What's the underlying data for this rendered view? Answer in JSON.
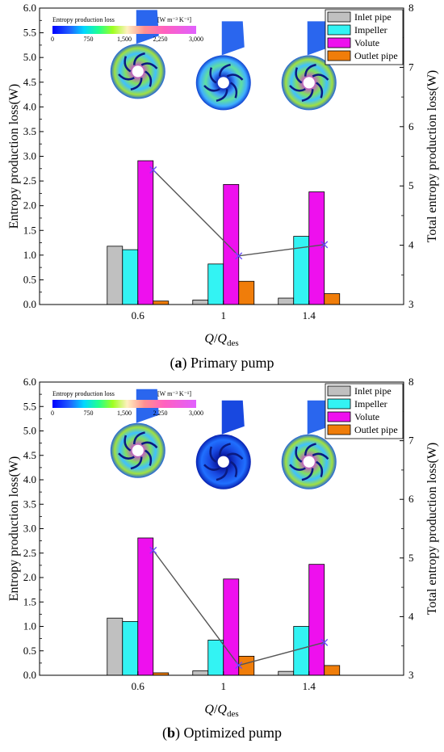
{
  "chart_data": [
    {
      "type": "bar",
      "caption_label": "a",
      "caption_text": "Primary pump",
      "xlabel_main": "Q",
      "xlabel_sep": "/",
      "xlabel_q": "Q",
      "xlabel_sub": "des",
      "ylabel": "Entropy production loss(W)",
      "y2label": "Total entropy production loss(W)",
      "categories": [
        "0.6",
        "1",
        "1.4"
      ],
      "ylim": [
        0,
        6.0
      ],
      "yticks": [
        "0.0",
        "0.5",
        "1.0",
        "1.5",
        "2.0",
        "2.5",
        "3.0",
        "3.5",
        "4.0",
        "4.5",
        "5.0",
        "5.5",
        "6.0"
      ],
      "y2lim": [
        3,
        8
      ],
      "y2ticks": [
        "3",
        "4",
        "5",
        "6",
        "7",
        "8"
      ],
      "series": [
        {
          "name": "Inlet pipe",
          "color": "#c0c0c0",
          "values": [
            1.18,
            0.09,
            0.13
          ]
        },
        {
          "name": "Impeller",
          "color": "#33f3f3",
          "values": [
            1.11,
            0.82,
            1.38
          ]
        },
        {
          "name": "Volute",
          "color": "#ee10ee",
          "values": [
            2.91,
            2.43,
            2.28
          ]
        },
        {
          "name": "Outlet pipe",
          "color": "#f07d0a",
          "values": [
            0.07,
            0.47,
            0.22
          ]
        }
      ],
      "total_line": {
        "values": [
          5.27,
          3.82,
          4.01
        ],
        "color": "#555555"
      },
      "colorbar": {
        "title": "Entropy production loss",
        "unit": "[W m⁻³ K⁻¹]",
        "ticks": [
          "0",
          "750",
          "1,500",
          "2,250",
          "3,000"
        ]
      },
      "legend_position": "top-right",
      "grid": false
    },
    {
      "type": "bar",
      "caption_label": "b",
      "caption_text": "Optimized pump",
      "xlabel_main": "Q",
      "xlabel_sep": "/",
      "xlabel_q": "Q",
      "xlabel_sub": "des",
      "ylabel": "Entropy production loss(W)",
      "y2label": "Total entropy production loss(W)",
      "categories": [
        "0.6",
        "1",
        "1.4"
      ],
      "ylim": [
        0,
        6.0
      ],
      "yticks": [
        "0.0",
        "0.5",
        "1.0",
        "1.5",
        "2.0",
        "2.5",
        "3.0",
        "3.5",
        "4.0",
        "4.5",
        "5.0",
        "5.5",
        "6.0"
      ],
      "y2lim": [
        3,
        8
      ],
      "y2ticks": [
        "3",
        "4",
        "5",
        "6",
        "7",
        "8"
      ],
      "series": [
        {
          "name": "Inlet pipe",
          "color": "#c0c0c0",
          "values": [
            1.17,
            0.09,
            0.08
          ]
        },
        {
          "name": "Impeller",
          "color": "#33f3f3",
          "values": [
            1.1,
            0.72,
            1.0
          ]
        },
        {
          "name": "Volute",
          "color": "#ee10ee",
          "values": [
            2.81,
            1.97,
            2.27
          ]
        },
        {
          "name": "Outlet pipe",
          "color": "#f07d0a",
          "values": [
            0.05,
            0.39,
            0.2
          ]
        }
      ],
      "total_line": {
        "values": [
          5.13,
          3.17,
          3.56
        ],
        "color": "#555555"
      },
      "colorbar": {
        "title": "Entropy production loss",
        "unit": "[W m⁻³ K⁻¹]",
        "ticks": [
          "0",
          "750",
          "1,500",
          "2,250",
          "3,000"
        ]
      },
      "legend_position": "top-right",
      "grid": false
    }
  ]
}
